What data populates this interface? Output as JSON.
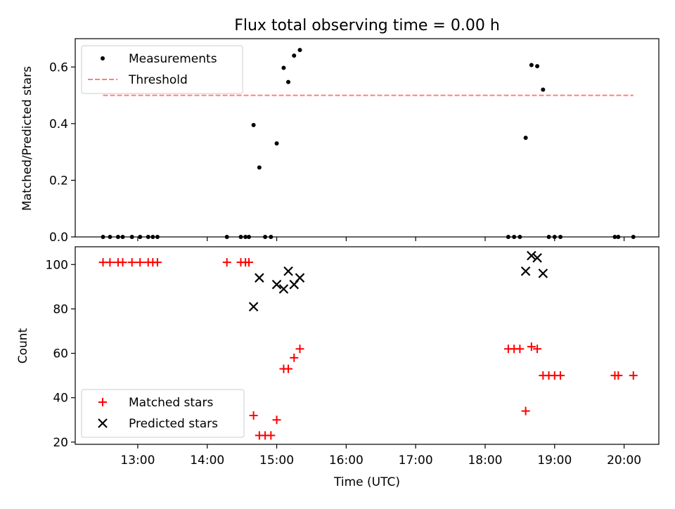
{
  "chart_data": [
    {
      "type": "scatter",
      "title": "Flux total observing time = 0.00 h",
      "xlabel": "",
      "ylabel": "Matched/Predicted stars",
      "xlim": [
        "12:06",
        "20:30"
      ],
      "ylim": [
        0,
        0.7
      ],
      "yticks": [
        "0.0",
        "0.2",
        "0.4",
        "0.6"
      ],
      "grid": false,
      "legend_position": "upper-left",
      "series": [
        {
          "name": "Measurements",
          "marker": "dot",
          "color": "#000000",
          "points": [
            [
              "12:30",
              0
            ],
            [
              "12:36",
              0
            ],
            [
              "12:43",
              0
            ],
            [
              "12:47",
              0
            ],
            [
              "12:55",
              0
            ],
            [
              "13:02",
              0
            ],
            [
              "13:09",
              0
            ],
            [
              "13:13",
              0
            ],
            [
              "13:17",
              0
            ],
            [
              "14:17",
              0
            ],
            [
              "14:29",
              0
            ],
            [
              "14:33",
              0
            ],
            [
              "14:36",
              0
            ],
            [
              "14:40",
              0.395
            ],
            [
              "14:45",
              0.245
            ],
            [
              "14:50",
              0
            ],
            [
              "14:55",
              0
            ],
            [
              "15:00",
              0.33
            ],
            [
              "15:06",
              0.597
            ],
            [
              "15:10",
              0.547
            ],
            [
              "15:15",
              0.64
            ],
            [
              "15:20",
              0.66
            ],
            [
              "18:20",
              0
            ],
            [
              "18:25",
              0
            ],
            [
              "18:30",
              0
            ],
            [
              "18:35",
              0.35
            ],
            [
              "18:40",
              0.607
            ],
            [
              "18:45",
              0.603
            ],
            [
              "18:50",
              0.52
            ],
            [
              "18:55",
              0
            ],
            [
              "19:00",
              0
            ],
            [
              "19:05",
              0
            ],
            [
              "19:52",
              0
            ],
            [
              "19:55",
              0
            ],
            [
              "20:08",
              0
            ]
          ]
        },
        {
          "name": "Threshold",
          "style": "dashed",
          "color": "#ff7f7f",
          "x": [
            "12:30",
            "20:08"
          ],
          "y": [
            0.5,
            0.5
          ]
        }
      ]
    },
    {
      "type": "scatter",
      "title": "",
      "xlabel": "Time (UTC)",
      "ylabel": "Count",
      "xlim": [
        "12:06",
        "20:30"
      ],
      "ylim": [
        19,
        108
      ],
      "yticks": [
        "20",
        "40",
        "60",
        "80",
        "100"
      ],
      "xticks": [
        "13:00",
        "14:00",
        "15:00",
        "16:00",
        "17:00",
        "18:00",
        "19:00",
        "20:00"
      ],
      "grid": false,
      "legend_position": "lower-left",
      "series": [
        {
          "name": "Matched stars",
          "marker": "plus",
          "color": "#ff0000",
          "points": [
            [
              "12:30",
              101
            ],
            [
              "12:36",
              101
            ],
            [
              "12:43",
              101
            ],
            [
              "12:47",
              101
            ],
            [
              "12:55",
              101
            ],
            [
              "13:02",
              101
            ],
            [
              "13:09",
              101
            ],
            [
              "13:13",
              101
            ],
            [
              "13:17",
              101
            ],
            [
              "14:17",
              101
            ],
            [
              "14:29",
              101
            ],
            [
              "14:33",
              101
            ],
            [
              "14:36",
              101
            ],
            [
              "14:40",
              32
            ],
            [
              "14:45",
              23
            ],
            [
              "14:50",
              23
            ],
            [
              "14:55",
              23
            ],
            [
              "15:00",
              30
            ],
            [
              "15:06",
              53
            ],
            [
              "15:10",
              53
            ],
            [
              "15:15",
              58
            ],
            [
              "15:20",
              62
            ],
            [
              "18:20",
              62
            ],
            [
              "18:25",
              62
            ],
            [
              "18:30",
              62
            ],
            [
              "18:35",
              34
            ],
            [
              "18:40",
              63
            ],
            [
              "18:45",
              62
            ],
            [
              "18:50",
              50
            ],
            [
              "18:55",
              50
            ],
            [
              "19:00",
              50
            ],
            [
              "19:05",
              50
            ],
            [
              "19:52",
              50
            ],
            [
              "19:55",
              50
            ],
            [
              "20:08",
              50
            ]
          ]
        },
        {
          "name": "Predicted stars",
          "marker": "x",
          "color": "#000000",
          "points": [
            [
              "14:40",
              81
            ],
            [
              "14:45",
              94
            ],
            [
              "15:00",
              91
            ],
            [
              "15:06",
              89
            ],
            [
              "15:10",
              97
            ],
            [
              "15:15",
              91
            ],
            [
              "15:20",
              94
            ],
            [
              "18:35",
              97
            ],
            [
              "18:40",
              104
            ],
            [
              "18:45",
              103
            ],
            [
              "18:50",
              96
            ]
          ]
        }
      ]
    }
  ]
}
